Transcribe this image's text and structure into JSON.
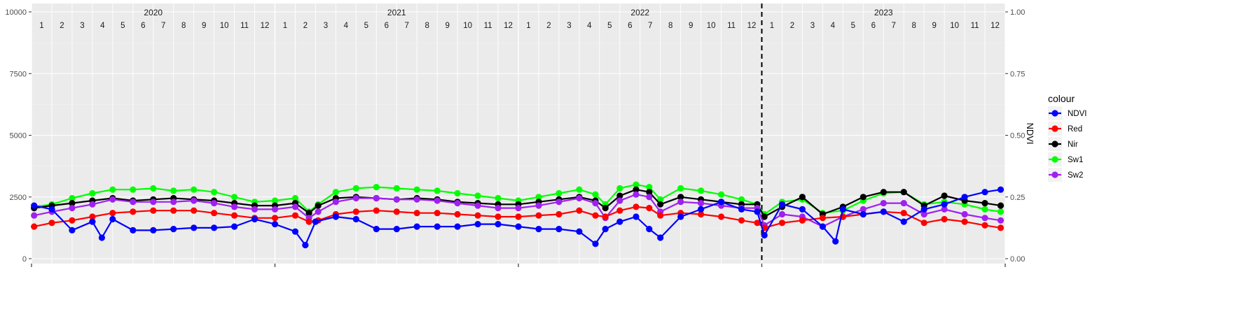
{
  "chart_data": {
    "type": "line",
    "title": "",
    "xlabel": "",
    "ylabel": "",
    "y2label": "NDVI",
    "ylim": [
      0,
      10000
    ],
    "y2lim": [
      0,
      1
    ],
    "yticks": [
      0,
      2500,
      5000,
      7500,
      10000
    ],
    "y2ticks": [
      "0.00",
      "0.25",
      "0.50",
      "0.75",
      "1.00"
    ],
    "years": [
      "2020",
      "2021",
      "2022",
      "2023"
    ],
    "months": [
      "1",
      "2",
      "3",
      "4",
      "5",
      "6",
      "7",
      "8",
      "9",
      "10",
      "11",
      "12"
    ],
    "vline_at": "2023-01-01",
    "grid": true,
    "legend_title": "colour",
    "legend_position": "right",
    "colors": {
      "NDVI": "#0000ff",
      "Red": "#ff0000",
      "Nir": "#000000",
      "Sw1": "#00ff00",
      "Sw2": "#a020f0"
    },
    "series": [
      {
        "name": "Sw1",
        "axis": "primary",
        "x": [
          "2020-01-05",
          "2020-02-01",
          "2020-03-01",
          "2020-04-01",
          "2020-05-01",
          "2020-06-01",
          "2020-07-01",
          "2020-08-01",
          "2020-09-01",
          "2020-10-01",
          "2020-11-01",
          "2020-12-01",
          "2021-01-01",
          "2021-02-01",
          "2021-02-20",
          "2021-03-05",
          "2021-04-01",
          "2021-05-01",
          "2021-06-01",
          "2021-07-01",
          "2021-08-01",
          "2021-09-01",
          "2021-10-01",
          "2021-11-01",
          "2021-12-01",
          "2022-01-01",
          "2022-02-01",
          "2022-03-01",
          "2022-04-01",
          "2022-04-25",
          "2022-05-10",
          "2022-06-01",
          "2022-06-25",
          "2022-07-15",
          "2022-08-01",
          "2022-09-01",
          "2022-10-01",
          "2022-11-01",
          "2022-12-01",
          "2022-12-25",
          "2023-01-05",
          "2023-02-01",
          "2023-03-01",
          "2023-04-01",
          "2023-05-01",
          "2023-06-01",
          "2023-07-01",
          "2023-08-01",
          "2023-09-01",
          "2023-10-01",
          "2023-11-01",
          "2023-12-01",
          "2023-12-25"
        ],
        "values": [
          2100,
          2200,
          2450,
          2650,
          2800,
          2800,
          2850,
          2750,
          2800,
          2700,
          2500,
          2300,
          2350,
          2450,
          1900,
          2200,
          2700,
          2850,
          2900,
          2850,
          2800,
          2750,
          2650,
          2550,
          2450,
          2350,
          2500,
          2650,
          2800,
          2600,
          2200,
          2850,
          3000,
          2900,
          2400,
          2850,
          2750,
          2600,
          2400,
          2200,
          1800,
          2300,
          2400,
          1850,
          1950,
          2350,
          2650,
          2700,
          2200,
          2300,
          2200,
          2000,
          1900
        ]
      },
      {
        "name": "Nir",
        "axis": "primary",
        "x": [
          "2020-01-05",
          "2020-02-01",
          "2020-03-01",
          "2020-04-01",
          "2020-05-01",
          "2020-06-01",
          "2020-07-01",
          "2020-08-01",
          "2020-09-01",
          "2020-10-01",
          "2020-11-01",
          "2020-12-01",
          "2021-01-01",
          "2021-02-01",
          "2021-02-20",
          "2021-03-05",
          "2021-04-01",
          "2021-05-01",
          "2021-06-01",
          "2021-07-01",
          "2021-08-01",
          "2021-09-01",
          "2021-10-01",
          "2021-11-01",
          "2021-12-01",
          "2022-01-01",
          "2022-02-01",
          "2022-03-01",
          "2022-04-01",
          "2022-04-25",
          "2022-05-10",
          "2022-06-01",
          "2022-06-25",
          "2022-07-15",
          "2022-08-01",
          "2022-09-01",
          "2022-10-01",
          "2022-11-01",
          "2022-12-01",
          "2022-12-25",
          "2023-01-05",
          "2023-02-01",
          "2023-03-01",
          "2023-04-01",
          "2023-05-01",
          "2023-06-01",
          "2023-07-01",
          "2023-08-01",
          "2023-09-01",
          "2023-10-01",
          "2023-11-01",
          "2023-12-01",
          "2023-12-25"
        ],
        "values": [
          2050,
          2150,
          2250,
          2350,
          2450,
          2350,
          2400,
          2450,
          2400,
          2350,
          2250,
          2150,
          2150,
          2250,
          1850,
          2150,
          2450,
          2500,
          2450,
          2400,
          2450,
          2400,
          2300,
          2250,
          2200,
          2200,
          2300,
          2400,
          2500,
          2350,
          2050,
          2550,
          2800,
          2700,
          2200,
          2500,
          2400,
          2300,
          2200,
          2200,
          1700,
          2100,
          2500,
          1800,
          2100,
          2500,
          2700,
          2700,
          2150,
          2550,
          2350,
          2250,
          2150
        ]
      },
      {
        "name": "Sw2",
        "axis": "primary",
        "x": [
          "2020-01-05",
          "2020-02-01",
          "2020-03-01",
          "2020-04-01",
          "2020-05-01",
          "2020-06-01",
          "2020-07-01",
          "2020-08-01",
          "2020-09-01",
          "2020-10-01",
          "2020-11-01",
          "2020-12-01",
          "2021-01-01",
          "2021-02-01",
          "2021-02-20",
          "2021-03-05",
          "2021-04-01",
          "2021-05-01",
          "2021-06-01",
          "2021-07-01",
          "2021-08-01",
          "2021-09-01",
          "2021-10-01",
          "2021-11-01",
          "2021-12-01",
          "2022-01-01",
          "2022-02-01",
          "2022-03-01",
          "2022-04-01",
          "2022-04-25",
          "2022-05-10",
          "2022-06-01",
          "2022-06-25",
          "2022-07-15",
          "2022-08-01",
          "2022-09-01",
          "2022-10-01",
          "2022-11-01",
          "2022-12-01",
          "2022-12-25",
          "2023-01-05",
          "2023-02-01",
          "2023-03-01",
          "2023-04-01",
          "2023-05-01",
          "2023-06-01",
          "2023-07-01",
          "2023-08-01",
          "2023-09-01",
          "2023-10-01",
          "2023-11-01",
          "2023-12-01",
          "2023-12-25"
        ],
        "values": [
          1750,
          1900,
          2050,
          2200,
          2400,
          2300,
          2300,
          2300,
          2350,
          2250,
          2100,
          2000,
          2000,
          2100,
          1650,
          1900,
          2300,
          2450,
          2450,
          2400,
          2400,
          2350,
          2250,
          2150,
          2050,
          2050,
          2150,
          2300,
          2450,
          2250,
          1650,
          2350,
          2600,
          2500,
          1900,
          2300,
          2250,
          2150,
          2050,
          2050,
          1350,
          1800,
          1700,
          1300,
          1700,
          2000,
          2250,
          2250,
          1800,
          2000,
          1800,
          1650,
          1550
        ]
      },
      {
        "name": "Red",
        "axis": "primary",
        "x": [
          "2020-01-05",
          "2020-02-01",
          "2020-03-01",
          "2020-04-01",
          "2020-05-01",
          "2020-06-01",
          "2020-07-01",
          "2020-08-01",
          "2020-09-01",
          "2020-10-01",
          "2020-11-01",
          "2020-12-01",
          "2021-01-01",
          "2021-02-01",
          "2021-02-20",
          "2021-03-05",
          "2021-04-01",
          "2021-05-01",
          "2021-06-01",
          "2021-07-01",
          "2021-08-01",
          "2021-09-01",
          "2021-10-01",
          "2021-11-01",
          "2021-12-01",
          "2022-01-01",
          "2022-02-01",
          "2022-03-01",
          "2022-04-01",
          "2022-04-25",
          "2022-05-10",
          "2022-06-01",
          "2022-06-25",
          "2022-07-15",
          "2022-08-01",
          "2022-09-01",
          "2022-10-01",
          "2022-11-01",
          "2022-12-01",
          "2022-12-25",
          "2023-01-05",
          "2023-02-01",
          "2023-03-01",
          "2023-04-01",
          "2023-05-01",
          "2023-06-01",
          "2023-07-01",
          "2023-08-01",
          "2023-09-01",
          "2023-10-01",
          "2023-11-01",
          "2023-12-01",
          "2023-12-25"
        ],
        "values": [
          1300,
          1450,
          1550,
          1700,
          1850,
          1900,
          1950,
          1950,
          1950,
          1850,
          1750,
          1650,
          1650,
          1750,
          1500,
          1550,
          1800,
          1900,
          1950,
          1900,
          1850,
          1850,
          1800,
          1750,
          1700,
          1700,
          1750,
          1800,
          1950,
          1750,
          1700,
          1950,
          2100,
          2050,
          1750,
          1850,
          1800,
          1700,
          1550,
          1450,
          1250,
          1450,
          1550,
          1650,
          1700,
          1800,
          1900,
          1850,
          1450,
          1600,
          1500,
          1350,
          1250
        ]
      },
      {
        "name": "NDVI",
        "axis": "secondary",
        "x": [
          "2020-01-05",
          "2020-02-01",
          "2020-03-01",
          "2020-04-01",
          "2020-04-15",
          "2020-05-01",
          "2020-06-01",
          "2020-07-01",
          "2020-08-01",
          "2020-09-01",
          "2020-10-01",
          "2020-11-01",
          "2020-12-01",
          "2021-01-01",
          "2021-02-01",
          "2021-02-15",
          "2021-03-01",
          "2021-04-01",
          "2021-05-01",
          "2021-06-01",
          "2021-07-01",
          "2021-08-01",
          "2021-09-01",
          "2021-10-01",
          "2021-11-01",
          "2021-12-01",
          "2022-01-01",
          "2022-02-01",
          "2022-03-01",
          "2022-04-01",
          "2022-04-25",
          "2022-05-10",
          "2022-06-01",
          "2022-06-25",
          "2022-07-15",
          "2022-08-01",
          "2022-09-01",
          "2022-10-01",
          "2022-11-01",
          "2022-12-01",
          "2022-12-25",
          "2023-01-05",
          "2023-02-01",
          "2023-03-01",
          "2023-04-01",
          "2023-04-20",
          "2023-05-01",
          "2023-06-01",
          "2023-07-01",
          "2023-08-01",
          "2023-09-01",
          "2023-10-01",
          "2023-11-01",
          "2023-12-01",
          "2023-12-25"
        ],
        "values": [
          0.215,
          0.2,
          0.115,
          0.15,
          0.085,
          0.16,
          0.115,
          0.115,
          0.12,
          0.125,
          0.125,
          0.13,
          0.16,
          0.14,
          0.11,
          0.055,
          0.15,
          0.17,
          0.16,
          0.12,
          0.12,
          0.13,
          0.13,
          0.13,
          0.14,
          0.14,
          0.13,
          0.12,
          0.12,
          0.11,
          0.06,
          0.12,
          0.15,
          0.17,
          0.12,
          0.085,
          0.17,
          0.2,
          0.23,
          0.2,
          0.19,
          0.095,
          0.22,
          0.2,
          0.13,
          0.07,
          0.2,
          0.18,
          0.19,
          0.15,
          0.2,
          0.22,
          0.25,
          0.27,
          0.28
        ]
      }
    ]
  }
}
